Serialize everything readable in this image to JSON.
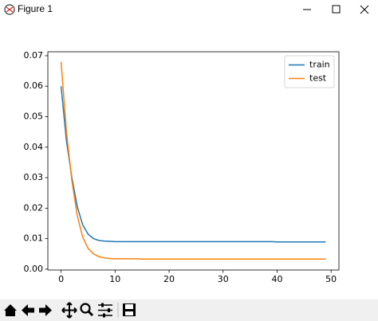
{
  "window": {
    "title": "Figure 1"
  },
  "chart_data": {
    "type": "line",
    "x": [
      0,
      1,
      2,
      3,
      4,
      5,
      6,
      7,
      8,
      9,
      10,
      11,
      12,
      13,
      14,
      15,
      16,
      17,
      18,
      19,
      20,
      21,
      22,
      23,
      24,
      25,
      26,
      27,
      28,
      29,
      30,
      31,
      32,
      33,
      34,
      35,
      36,
      37,
      38,
      39,
      40,
      41,
      42,
      43,
      44,
      45,
      46,
      47,
      48,
      49
    ],
    "series": [
      {
        "name": "train",
        "color": "#1f77b4",
        "values": [
          0.06,
          0.042,
          0.03,
          0.0205,
          0.0145,
          0.0115,
          0.01,
          0.0094,
          0.0092,
          0.0091,
          0.009,
          0.009,
          0.009,
          0.009,
          0.009,
          0.009,
          0.009,
          0.009,
          0.009,
          0.009,
          0.009,
          0.009,
          0.009,
          0.009,
          0.009,
          0.009,
          0.009,
          0.009,
          0.009,
          0.009,
          0.009,
          0.009,
          0.009,
          0.009,
          0.009,
          0.009,
          0.009,
          0.009,
          0.009,
          0.009,
          0.0089,
          0.0089,
          0.0089,
          0.0089,
          0.0089,
          0.0089,
          0.0089,
          0.0089,
          0.0089,
          0.0089
        ]
      },
      {
        "name": "test",
        "color": "#ff7f0e",
        "values": [
          0.068,
          0.045,
          0.029,
          0.0175,
          0.0105,
          0.0068,
          0.005,
          0.0041,
          0.0037,
          0.0035,
          0.0034,
          0.0034,
          0.0034,
          0.0034,
          0.0034,
          0.0033,
          0.0033,
          0.0033,
          0.0033,
          0.0033,
          0.0033,
          0.0033,
          0.0033,
          0.0033,
          0.0033,
          0.0033,
          0.0033,
          0.0033,
          0.0033,
          0.0033,
          0.0033,
          0.0033,
          0.0033,
          0.0033,
          0.0033,
          0.0033,
          0.0033,
          0.0033,
          0.0033,
          0.0033,
          0.0033,
          0.0033,
          0.0033,
          0.0033,
          0.0033,
          0.0033,
          0.0033,
          0.0033,
          0.0033,
          0.0033
        ]
      }
    ],
    "xlim": [
      -2.45,
      51.45
    ],
    "xticks": [
      0,
      10,
      20,
      30,
      40,
      50
    ],
    "ylim": [
      -0.0003,
      0.0713
    ],
    "yticks": [
      {
        "value": 0,
        "label": "0.00"
      },
      0.01,
      0.02,
      0.03,
      0.04,
      0.05,
      0.06,
      0.07
    ],
    "legend": "upper right"
  }
}
